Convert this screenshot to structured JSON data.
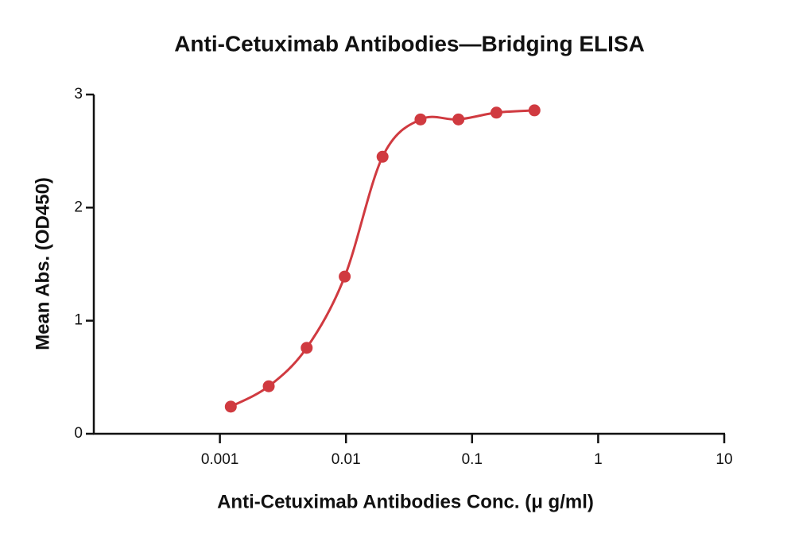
{
  "chart_data": {
    "type": "scatter",
    "title": "Anti-Cetuximab Antibodies—Bridging ELISA",
    "xlabel": "Anti-Cetuximab Antibodies Conc. (μ g/ml)",
    "ylabel": "Mean Abs. (OD450)",
    "x": [
      0.00122,
      0.00244,
      0.00488,
      0.00977,
      0.0195,
      0.039,
      0.078,
      0.156,
      0.3125
    ],
    "values": [
      0.24,
      0.42,
      0.76,
      1.39,
      2.45,
      2.78,
      2.78,
      2.84,
      2.86
    ],
    "color": "#d03a40",
    "xscale": "log",
    "xlim": [
      0.0001,
      10
    ],
    "xticks": [
      0.001,
      0.01,
      0.1,
      1,
      10
    ],
    "ylim": [
      0,
      3
    ],
    "yticks": [
      0,
      1,
      2,
      3
    ]
  }
}
